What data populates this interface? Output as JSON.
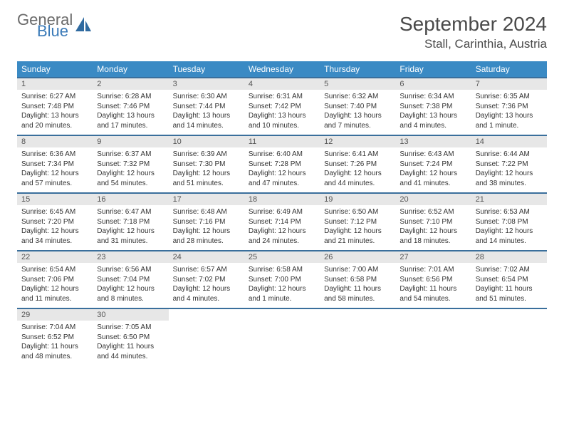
{
  "logo": {
    "general": "General",
    "blue": "Blue"
  },
  "title": "September 2024",
  "location": "Stall, Carinthia, Austria",
  "header_bg": "#3a8ac4",
  "daynum_bg": "#e7e7e7",
  "rule_color": "#3a6f9c",
  "weekdays": [
    "Sunday",
    "Monday",
    "Tuesday",
    "Wednesday",
    "Thursday",
    "Friday",
    "Saturday"
  ],
  "weeks": [
    [
      {
        "n": "1",
        "sr": "6:27 AM",
        "ss": "7:48 PM",
        "dl": "13 hours and 20 minutes."
      },
      {
        "n": "2",
        "sr": "6:28 AM",
        "ss": "7:46 PM",
        "dl": "13 hours and 17 minutes."
      },
      {
        "n": "3",
        "sr": "6:30 AM",
        "ss": "7:44 PM",
        "dl": "13 hours and 14 minutes."
      },
      {
        "n": "4",
        "sr": "6:31 AM",
        "ss": "7:42 PM",
        "dl": "13 hours and 10 minutes."
      },
      {
        "n": "5",
        "sr": "6:32 AM",
        "ss": "7:40 PM",
        "dl": "13 hours and 7 minutes."
      },
      {
        "n": "6",
        "sr": "6:34 AM",
        "ss": "7:38 PM",
        "dl": "13 hours and 4 minutes."
      },
      {
        "n": "7",
        "sr": "6:35 AM",
        "ss": "7:36 PM",
        "dl": "13 hours and 1 minute."
      }
    ],
    [
      {
        "n": "8",
        "sr": "6:36 AM",
        "ss": "7:34 PM",
        "dl": "12 hours and 57 minutes."
      },
      {
        "n": "9",
        "sr": "6:37 AM",
        "ss": "7:32 PM",
        "dl": "12 hours and 54 minutes."
      },
      {
        "n": "10",
        "sr": "6:39 AM",
        "ss": "7:30 PM",
        "dl": "12 hours and 51 minutes."
      },
      {
        "n": "11",
        "sr": "6:40 AM",
        "ss": "7:28 PM",
        "dl": "12 hours and 47 minutes."
      },
      {
        "n": "12",
        "sr": "6:41 AM",
        "ss": "7:26 PM",
        "dl": "12 hours and 44 minutes."
      },
      {
        "n": "13",
        "sr": "6:43 AM",
        "ss": "7:24 PM",
        "dl": "12 hours and 41 minutes."
      },
      {
        "n": "14",
        "sr": "6:44 AM",
        "ss": "7:22 PM",
        "dl": "12 hours and 38 minutes."
      }
    ],
    [
      {
        "n": "15",
        "sr": "6:45 AM",
        "ss": "7:20 PM",
        "dl": "12 hours and 34 minutes."
      },
      {
        "n": "16",
        "sr": "6:47 AM",
        "ss": "7:18 PM",
        "dl": "12 hours and 31 minutes."
      },
      {
        "n": "17",
        "sr": "6:48 AM",
        "ss": "7:16 PM",
        "dl": "12 hours and 28 minutes."
      },
      {
        "n": "18",
        "sr": "6:49 AM",
        "ss": "7:14 PM",
        "dl": "12 hours and 24 minutes."
      },
      {
        "n": "19",
        "sr": "6:50 AM",
        "ss": "7:12 PM",
        "dl": "12 hours and 21 minutes."
      },
      {
        "n": "20",
        "sr": "6:52 AM",
        "ss": "7:10 PM",
        "dl": "12 hours and 18 minutes."
      },
      {
        "n": "21",
        "sr": "6:53 AM",
        "ss": "7:08 PM",
        "dl": "12 hours and 14 minutes."
      }
    ],
    [
      {
        "n": "22",
        "sr": "6:54 AM",
        "ss": "7:06 PM",
        "dl": "12 hours and 11 minutes."
      },
      {
        "n": "23",
        "sr": "6:56 AM",
        "ss": "7:04 PM",
        "dl": "12 hours and 8 minutes."
      },
      {
        "n": "24",
        "sr": "6:57 AM",
        "ss": "7:02 PM",
        "dl": "12 hours and 4 minutes."
      },
      {
        "n": "25",
        "sr": "6:58 AM",
        "ss": "7:00 PM",
        "dl": "12 hours and 1 minute."
      },
      {
        "n": "26",
        "sr": "7:00 AM",
        "ss": "6:58 PM",
        "dl": "11 hours and 58 minutes."
      },
      {
        "n": "27",
        "sr": "7:01 AM",
        "ss": "6:56 PM",
        "dl": "11 hours and 54 minutes."
      },
      {
        "n": "28",
        "sr": "7:02 AM",
        "ss": "6:54 PM",
        "dl": "11 hours and 51 minutes."
      }
    ],
    [
      {
        "n": "29",
        "sr": "7:04 AM",
        "ss": "6:52 PM",
        "dl": "11 hours and 48 minutes."
      },
      {
        "n": "30",
        "sr": "7:05 AM",
        "ss": "6:50 PM",
        "dl": "11 hours and 44 minutes."
      },
      null,
      null,
      null,
      null,
      null
    ]
  ],
  "labels": {
    "sunrise": "Sunrise:",
    "sunset": "Sunset:",
    "daylight": "Daylight:"
  }
}
